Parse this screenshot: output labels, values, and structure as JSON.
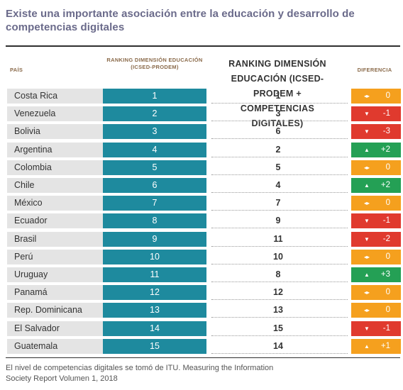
{
  "title": "Existe una importante asociación entre la educación y desarrollo de competencias digitales",
  "headers": {
    "pais": "País",
    "rank1": "Ranking dimensión educación (ICSEd-Prodem)",
    "rank2": "Ranking dimensión educación (ICSEd-Prodem + Competencias digitales)",
    "diferencia": "Diferencia"
  },
  "colors": {
    "teal": "#1e8a9e",
    "orange": "#f5a01e",
    "red": "#e03a2e",
    "green": "#24a055"
  },
  "rows": [
    {
      "country": "Costa Rica",
      "rank1": "1",
      "rank2": "1",
      "diff": "0",
      "status": "neutral"
    },
    {
      "country": "Venezuela",
      "rank1": "2",
      "rank2": "3",
      "diff": "-1",
      "status": "down"
    },
    {
      "country": "Bolivia",
      "rank1": "3",
      "rank2": "6",
      "diff": "-3",
      "status": "down"
    },
    {
      "country": "Argentina",
      "rank1": "4",
      "rank2": "2",
      "diff": "+2",
      "status": "up"
    },
    {
      "country": "Colombia",
      "rank1": "5",
      "rank2": "5",
      "diff": "0",
      "status": "neutral"
    },
    {
      "country": "Chile",
      "rank1": "6",
      "rank2": "4",
      "diff": "+2",
      "status": "up"
    },
    {
      "country": "México",
      "rank1": "7",
      "rank2": "7",
      "diff": "0",
      "status": "neutral"
    },
    {
      "country": "Ecuador",
      "rank1": "8",
      "rank2": "9",
      "diff": "-1",
      "status": "down"
    },
    {
      "country": "Brasil",
      "rank1": "9",
      "rank2": "11",
      "diff": "-2",
      "status": "down"
    },
    {
      "country": "Perú",
      "rank1": "10",
      "rank2": "10",
      "diff": "0",
      "status": "neutral"
    },
    {
      "country": "Uruguay",
      "rank1": "11",
      "rank2": "8",
      "diff": "+3",
      "status": "up"
    },
    {
      "country": "Panamá",
      "rank1": "12",
      "rank2": "12",
      "diff": "0",
      "status": "neutral"
    },
    {
      "country": "Rep. Dominicana",
      "rank1": "13",
      "rank2": "13",
      "diff": "0",
      "status": "neutral"
    },
    {
      "country": "El Salvador",
      "rank1": "14",
      "rank2": "15",
      "diff": "-1",
      "status": "down"
    },
    {
      "country": "Guatemala",
      "rank1": "15",
      "rank2": "14",
      "diff": "+1",
      "status": "up-orange"
    }
  ],
  "footer_line1": "El nivel de competencias digitales se tomó de ITU. Measuring the Information",
  "footer_line2": "Society Report Volumen 1, 2018"
}
